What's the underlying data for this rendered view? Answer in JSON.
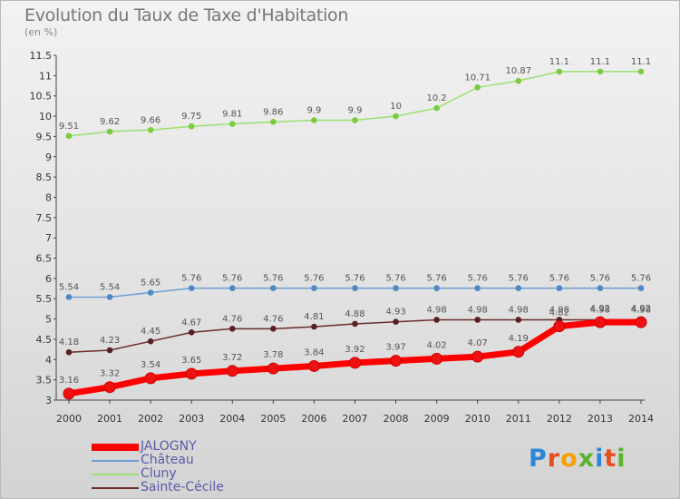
{
  "chart_data": {
    "type": "line",
    "title": "Evolution du Taux de Taxe d'Habitation",
    "unit_label": "(en %)",
    "x": [
      2000,
      2001,
      2002,
      2003,
      2004,
      2005,
      2006,
      2007,
      2008,
      2009,
      2010,
      2011,
      2012,
      2013,
      2014
    ],
    "ylim": [
      3,
      11.5
    ],
    "yticks": [
      "3",
      "3.5",
      "4",
      "4.5",
      "5",
      "5.5",
      "6",
      "6.5",
      "7",
      "7.5",
      "8",
      "8.5",
      "9",
      "9.5",
      "10",
      "10.5",
      "11",
      "11.5"
    ],
    "grid": false,
    "legend_position": "bottom-left",
    "series": [
      {
        "name": "JALOGNY",
        "color": "#ff0000",
        "marker_color": "#ee1111",
        "thick": true,
        "values": [
          3.16,
          3.32,
          3.54,
          3.65,
          3.72,
          3.78,
          3.84,
          3.92,
          3.97,
          4.02,
          4.07,
          4.19,
          4.82,
          4.92,
          4.92
        ],
        "labels": [
          "3.16",
          "3.32",
          "3.54",
          "3.65",
          "3.72",
          "3.78",
          "3.84",
          "3.92",
          "3.97",
          "4.02",
          "4.07",
          "4.19",
          "4.82",
          "4.92",
          "4.92"
        ]
      },
      {
        "name": "Château",
        "color": "#6a9fd2",
        "marker_color": "#4f88c6",
        "values": [
          5.54,
          5.54,
          5.65,
          5.76,
          5.76,
          5.76,
          5.76,
          5.76,
          5.76,
          5.76,
          5.76,
          5.76,
          5.76,
          5.76,
          5.76
        ],
        "labels": [
          "5.54",
          "5.54",
          "5.65",
          "5.76",
          "5.76",
          "5.76",
          "5.76",
          "5.76",
          "5.76",
          "5.76",
          "5.76",
          "5.76",
          "5.76",
          "5.76",
          "5.76"
        ]
      },
      {
        "name": "Cluny",
        "color": "#9be070",
        "marker_color": "#7acb42",
        "values": [
          9.51,
          9.62,
          9.66,
          9.75,
          9.81,
          9.86,
          9.9,
          9.9,
          10,
          10.2,
          10.71,
          10.87,
          11.1,
          11.1,
          11.1
        ],
        "labels": [
          "9.51",
          "9.62",
          "9.66",
          "9.75",
          "9.81",
          "9.86",
          "9.9",
          "9.9",
          "10",
          "10.2",
          "10.71",
          "10.87",
          "11.1",
          "11.1",
          "11.1"
        ]
      },
      {
        "name": "Sainte-Cécile",
        "color": "#6b2c2c",
        "marker_color": "#5a1f1f",
        "values": [
          4.18,
          4.23,
          4.45,
          4.67,
          4.76,
          4.76,
          4.81,
          4.88,
          4.93,
          4.98,
          4.98,
          4.98,
          4.98,
          4.98,
          4.98
        ],
        "labels": [
          "4.18",
          "4.23",
          "4.45",
          "4.67",
          "4.76",
          "4.76",
          "4.81",
          "4.88",
          "4.93",
          "4.98",
          "4.98",
          "4.98",
          "4.98",
          "4.98",
          "4.98"
        ]
      }
    ]
  },
  "logo": {
    "text": "Proxiti"
  }
}
